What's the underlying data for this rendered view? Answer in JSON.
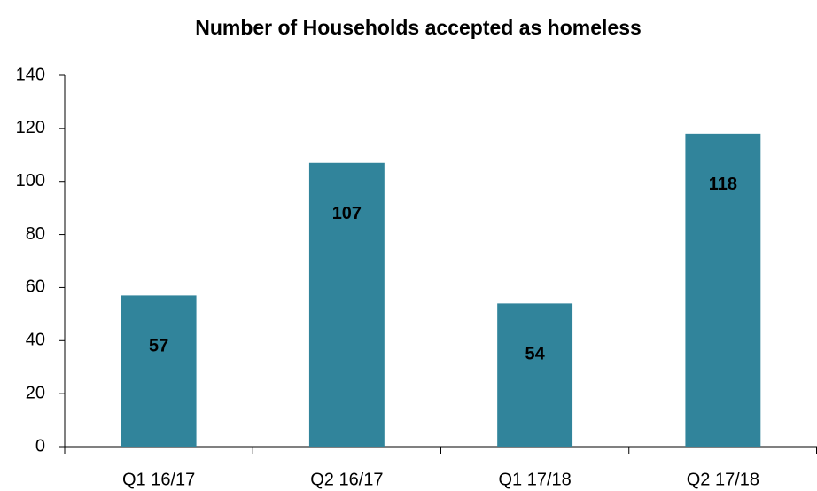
{
  "chart_data": {
    "type": "bar",
    "title": "Number of Households accepted as homeless",
    "categories": [
      "Q1 16/17",
      "Q2 16/17",
      "Q1 17/18",
      "Q2 17/18"
    ],
    "values": [
      57,
      107,
      54,
      118
    ],
    "color": "#31849b",
    "ylim": [
      0,
      140
    ],
    "yticks": [
      0,
      20,
      40,
      60,
      80,
      100,
      120,
      140
    ],
    "grid": false,
    "data_labels": true
  }
}
